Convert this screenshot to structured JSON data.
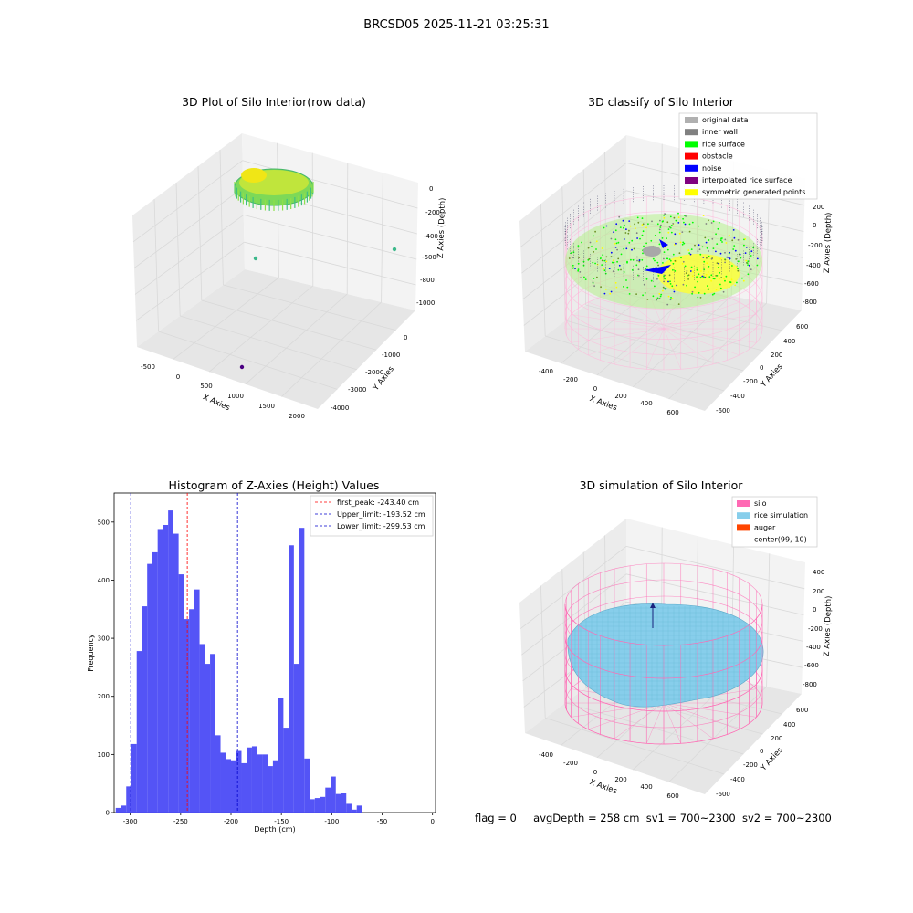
{
  "suptitle": "BRCSD05 2025-11-21 03:25:31",
  "colors": {
    "hist_bar": "#4b4bf5",
    "peak_line": "#ff0000",
    "limit_line": "#0000cc",
    "silo": "#ff69b4",
    "rice_simulation": "#87ceeb",
    "auger": "#ff4500",
    "rice_surface": "#00ff00",
    "original": "#b0b0b0",
    "inner_wall": "#808080",
    "obstacle": "#ff0000",
    "noise": "#0000ff",
    "interpolated": "#800080",
    "symmetric": "#ffff00"
  },
  "panels": {
    "raw": {
      "title": "3D Plot of Silo Interior(row data)",
      "xlabel": "X Axies",
      "ylabel": "Y Axies",
      "zlabel": "Z Axies (Depth)",
      "x_ticks": [
        "-500",
        "0",
        "500",
        "1000",
        "1500",
        "2000"
      ],
      "y_ticks": [
        "0",
        "-1000",
        "-2000",
        "-3000",
        "-4000"
      ],
      "z_ticks": [
        "0",
        "-200",
        "-400",
        "-600",
        "-800",
        "-1000"
      ]
    },
    "classify": {
      "title": "3D classify of Silo Interior",
      "xlabel": "X Axies",
      "ylabel": "Y Axies",
      "zlabel": "Z Axies (Depth)",
      "x_ticks": [
        "-400",
        "-200",
        "0",
        "200",
        "400",
        "600"
      ],
      "y_ticks": [
        "600",
        "400",
        "200",
        "0",
        "-200",
        "-400",
        "-600"
      ],
      "z_ticks": [
        "200",
        "0",
        "-200",
        "-400",
        "-600",
        "-800"
      ],
      "legend": [
        {
          "label": "original data",
          "color": "#b0b0b0"
        },
        {
          "label": "inner wall",
          "color": "#808080"
        },
        {
          "label": "rice surface",
          "color": "#00ff00"
        },
        {
          "label": "obstacle",
          "color": "#ff0000"
        },
        {
          "label": "noise",
          "color": "#0000ff"
        },
        {
          "label": "interpolated rice surface",
          "color": "#800080"
        },
        {
          "label": "symmetric generated points",
          "color": "#ffff00"
        }
      ]
    },
    "simulation": {
      "title": "3D simulation of Silo Interior",
      "xlabel": "X Axies",
      "ylabel": "Y Axies",
      "zlabel": "Z Axies (Depth)",
      "x_ticks": [
        "-400",
        "-200",
        "0",
        "200",
        "400",
        "600"
      ],
      "y_ticks": [
        "600",
        "400",
        "200",
        "0",
        "-200",
        "-400",
        "-600"
      ],
      "z_ticks": [
        "400",
        "200",
        "0",
        "-200",
        "-400",
        "-600",
        "-800"
      ],
      "legend": [
        {
          "label": "silo",
          "color": "#ff69b4"
        },
        {
          "label": "rice simulation",
          "color": "#87ceeb"
        },
        {
          "label": "auger",
          "color": "#ff4500"
        },
        {
          "label": "center(99,-10)",
          "color": ""
        }
      ]
    }
  },
  "chart_data": {
    "type": "bar",
    "title": "Histogram of Z-Axies (Height) Values",
    "xlabel": "Depth (cm)",
    "ylabel": "Frequency",
    "xlim": [
      -316,
      3
    ],
    "ylim": [
      0,
      550
    ],
    "x_ticks": [
      -300,
      -250,
      -200,
      -150,
      -100,
      -50,
      0
    ],
    "y_ticks": [
      0,
      100,
      200,
      300,
      400,
      500
    ],
    "bin_start": -314.4,
    "bin_width": 5.2,
    "values": [
      8,
      12,
      45,
      118,
      278,
      355,
      428,
      448,
      488,
      495,
      520,
      480,
      410,
      333,
      350,
      384,
      290,
      256,
      273,
      133,
      103,
      92,
      90,
      106,
      85,
      112,
      114,
      100,
      100,
      80,
      90,
      197,
      146,
      460,
      256,
      490,
      93,
      23,
      25,
      27,
      43,
      62,
      32,
      33,
      15,
      5,
      12
    ],
    "vlines": [
      {
        "x": -243.4,
        "label": "first_peak: -243.40 cm",
        "color": "#ff0000"
      },
      {
        "x": -193.52,
        "label": "Upper_limit: -193.52 cm",
        "color": "#0000cc"
      },
      {
        "x": -299.53,
        "label": "Lower_limit: -299.53 cm",
        "color": "#0000cc"
      }
    ],
    "legend_position": "top-right"
  },
  "footer": {
    "flag": "flag = 0",
    "avg_depth": "avgDepth = 258 cm",
    "sv1": "sv1 = 700~2300",
    "sv2": "sv2 = 700~2300"
  }
}
